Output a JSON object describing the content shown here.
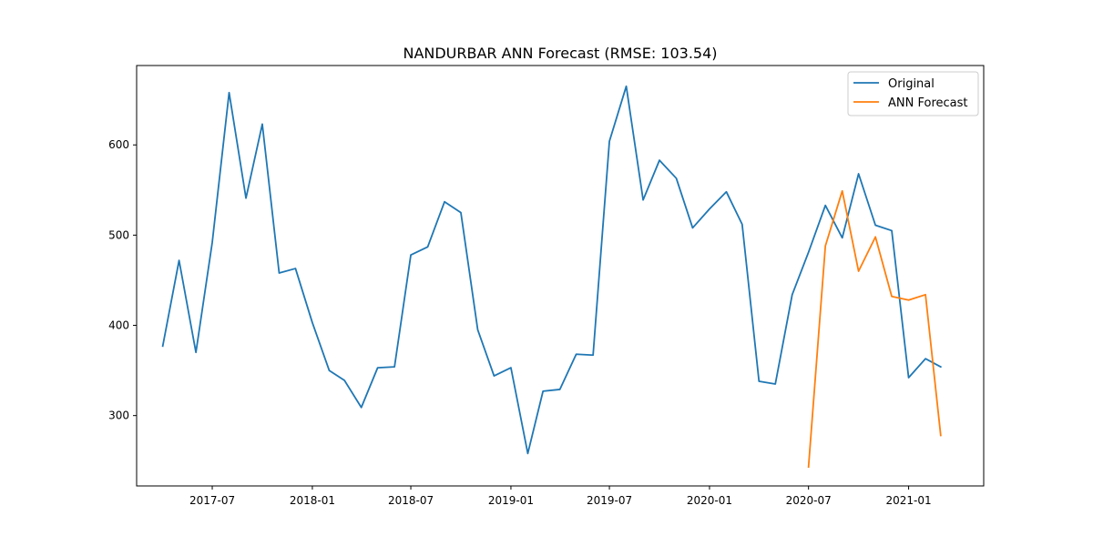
{
  "chart_data": {
    "type": "line",
    "title": "NANDURBAR ANN Forecast (RMSE: 103.54)",
    "xlabel": "",
    "ylabel": "",
    "x_axis_type": "date",
    "xlim": [
      "2017-02-12",
      "2021-05-19"
    ],
    "ylim": [
      222,
      688
    ],
    "x_ticks": [
      {
        "date": "2017-07-01",
        "label": "2017-07"
      },
      {
        "date": "2018-01-01",
        "label": "2018-01"
      },
      {
        "date": "2018-07-01",
        "label": "2018-07"
      },
      {
        "date": "2019-01-01",
        "label": "2019-01"
      },
      {
        "date": "2019-07-01",
        "label": "2019-07"
      },
      {
        "date": "2020-01-01",
        "label": "2020-01"
      },
      {
        "date": "2020-07-01",
        "label": "2020-07"
      },
      {
        "date": "2021-01-01",
        "label": "2021-01"
      }
    ],
    "y_ticks": [
      300,
      400,
      500,
      600
    ],
    "grid": false,
    "legend_position": "top-right",
    "series": [
      {
        "name": "Original",
        "color": "#1f77b4",
        "x": [
          "2017-04-01",
          "2017-05-01",
          "2017-06-01",
          "2017-07-01",
          "2017-08-01",
          "2017-09-01",
          "2017-10-01",
          "2017-11-01",
          "2017-12-01",
          "2018-01-01",
          "2018-02-01",
          "2018-03-01",
          "2018-04-01",
          "2018-05-01",
          "2018-06-01",
          "2018-07-01",
          "2018-08-01",
          "2018-09-01",
          "2018-10-01",
          "2018-11-01",
          "2018-12-01",
          "2019-01-01",
          "2019-02-01",
          "2019-03-01",
          "2019-04-01",
          "2019-05-01",
          "2019-06-01",
          "2019-07-01",
          "2019-08-01",
          "2019-09-01",
          "2019-10-01",
          "2019-11-01",
          "2019-12-01",
          "2020-01-01",
          "2020-02-01",
          "2020-03-01",
          "2020-04-01",
          "2020-05-01",
          "2020-06-01",
          "2020-07-01",
          "2020-08-01",
          "2020-09-01",
          "2020-10-01",
          "2020-11-01",
          "2020-12-01",
          "2021-01-01",
          "2021-02-01",
          "2021-03-01"
        ],
        "values": [
          377,
          472,
          370,
          492,
          658,
          541,
          623,
          458,
          463,
          403,
          350,
          339,
          309,
          353,
          354,
          478,
          487,
          537,
          525,
          395,
          344,
          353,
          258,
          327,
          329,
          368,
          367,
          604,
          665,
          539,
          583,
          563,
          508,
          529,
          548,
          512,
          338,
          335,
          434,
          481,
          533,
          497,
          568,
          511,
          505,
          342,
          363,
          354
        ]
      },
      {
        "name": "ANN Forecast",
        "color": "#ff7f0e",
        "x": [
          "2020-07-01",
          "2020-08-01",
          "2020-09-01",
          "2020-10-01",
          "2020-11-01",
          "2020-12-01",
          "2021-01-01",
          "2021-02-01",
          "2021-03-01"
        ],
        "values": [
          243,
          488,
          549,
          460,
          498,
          432,
          428,
          434,
          278
        ]
      }
    ]
  }
}
